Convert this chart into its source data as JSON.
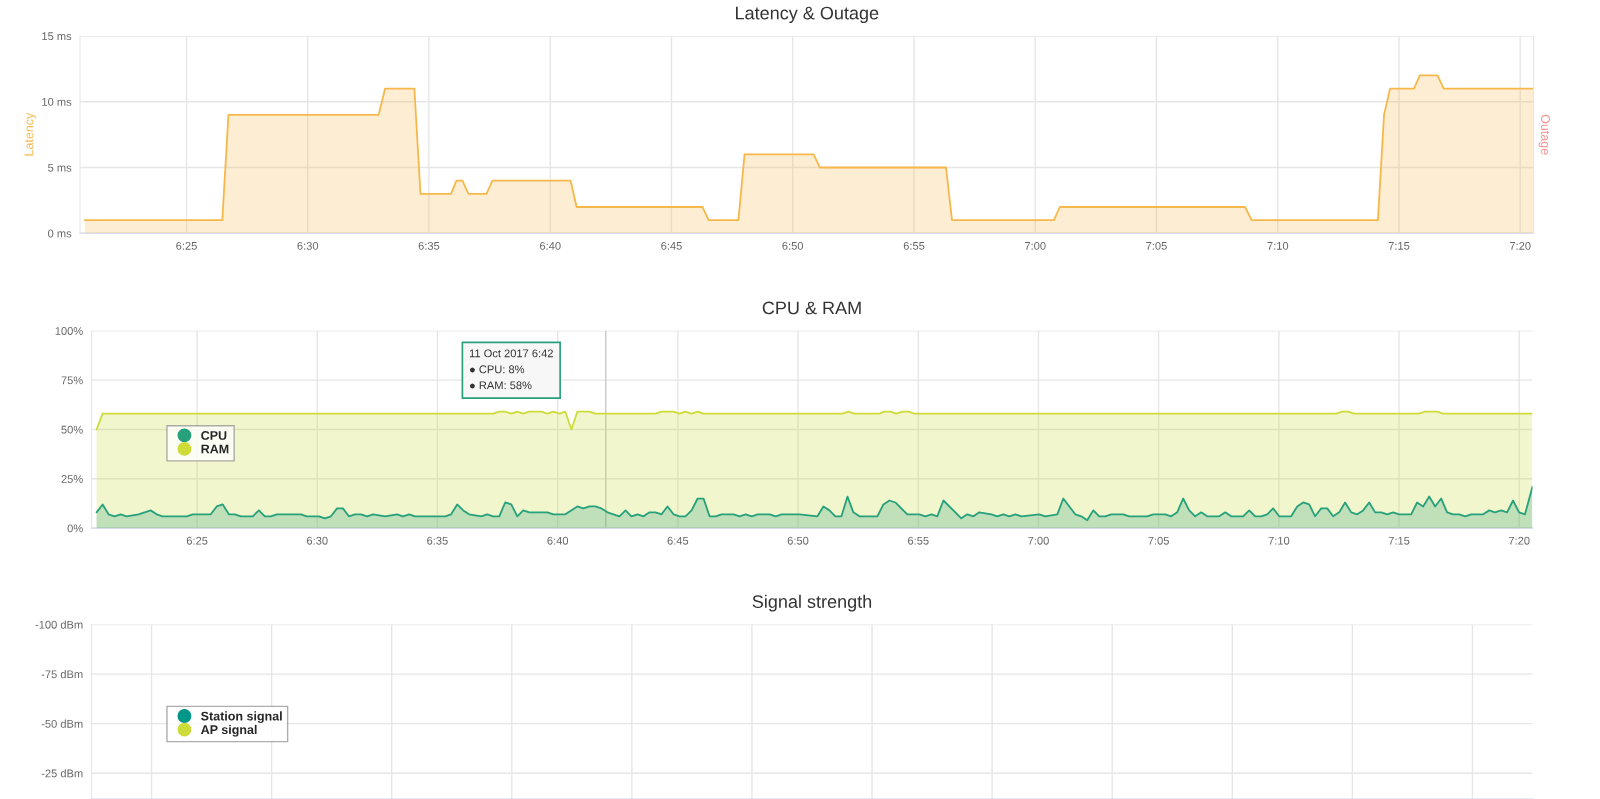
{
  "chart_data": [
    {
      "type": "area",
      "title": "Latency & Outage",
      "ylabel": "Latency",
      "y2label": "Outage",
      "grid": true,
      "legend": false,
      "xlim": [
        6.3435,
        7.3425
      ],
      "ylim": [
        0,
        15
      ],
      "xticks": [
        {
          "value": 6.4167,
          "label": "6:25"
        },
        {
          "value": 6.5,
          "label": "6:30"
        },
        {
          "value": 6.5833,
          "label": "6:35"
        },
        {
          "value": 6.6667,
          "label": "6:40"
        },
        {
          "value": 6.75,
          "label": "6:45"
        },
        {
          "value": 6.8333,
          "label": "6:50"
        },
        {
          "value": 6.9167,
          "label": "6:55"
        },
        {
          "value": 7,
          "label": "7:00"
        },
        {
          "value": 7.0833,
          "label": "7:05"
        },
        {
          "value": 7.1667,
          "label": "7:10"
        },
        {
          "value": 7.25,
          "label": "7:15"
        },
        {
          "value": 7.3333,
          "label": "7:20"
        }
      ],
      "yticks": [
        {
          "value": 0,
          "label": "0 ms"
        },
        {
          "value": 5,
          "label": "5 ms"
        },
        {
          "value": 10,
          "label": "10 ms"
        },
        {
          "value": 15,
          "label": "15 ms"
        }
      ],
      "series": [
        {
          "color": "#f7b84b",
          "x": [
            6.3468,
            6.4413,
            6.4455,
            6.5487,
            6.5532,
            6.5733,
            6.5775,
            6.5985,
            6.6022,
            6.6063,
            6.6105,
            6.6228,
            6.627,
            6.6807,
            6.6848,
            6.7713,
            6.7755,
            6.796,
            6.8002,
            6.8477,
            6.852,
            6.9387,
            6.9428,
            7.0128,
            7.017,
            7.1442,
            7.1487,
            7.2355,
            7.2397,
            7.2438,
            7.2603,
            7.2643,
            7.2765,
            7.2807,
            7.3425
          ],
          "values": [
            1,
            1,
            9,
            9,
            11,
            11,
            3,
            3,
            4,
            4,
            3,
            3,
            4,
            4,
            2,
            2,
            1,
            1,
            6,
            6,
            5,
            5,
            1,
            1,
            2,
            2,
            1,
            1,
            9,
            11,
            11,
            12,
            12,
            11,
            11
          ]
        }
      ]
    },
    {
      "type": "area",
      "title": "CPU & RAM",
      "grid": true,
      "legend": "left",
      "xlim": [
        6.3435,
        7.3425
      ],
      "ylim": [
        0,
        100
      ],
      "xticks": [
        {
          "value": 6.4167,
          "label": "6:25"
        },
        {
          "value": 6.5,
          "label": "6:30"
        },
        {
          "value": 6.5833,
          "label": "6:35"
        },
        {
          "value": 6.6667,
          "label": "6:40"
        },
        {
          "value": 6.75,
          "label": "6:45"
        },
        {
          "value": 6.8333,
          "label": "6:50"
        },
        {
          "value": 6.9167,
          "label": "6:55"
        },
        {
          "value": 7,
          "label": "7:00"
        },
        {
          "value": 7.0833,
          "label": "7:05"
        },
        {
          "value": 7.1667,
          "label": "7:10"
        },
        {
          "value": 7.25,
          "label": "7:15"
        },
        {
          "value": 7.3333,
          "label": "7:20"
        }
      ],
      "yticks": [
        {
          "value": 0,
          "label": "0%"
        },
        {
          "value": 25,
          "label": "25%"
        },
        {
          "value": 50,
          "label": "50%"
        },
        {
          "value": 75,
          "label": "75%"
        },
        {
          "value": 100,
          "label": "100%"
        }
      ],
      "ref_lines": [
        {
          "axis": "x",
          "value": 6.7,
          "color": "#c8c8c8"
        }
      ],
      "annotations": [
        "11 Oct 2017 6:42\n● CPU: 8%\n● RAM: 58%"
      ],
      "series": [
        {
          "name": "CPU",
          "color": "#26a17b",
          "x": [
            6.347,
            6.3512,
            6.3553,
            6.3595,
            6.3637,
            6.3678,
            6.3762,
            6.3845,
            6.3887,
            6.3928,
            6.4095,
            6.4137,
            6.4262,
            6.4303,
            6.4345,
            6.4387,
            6.4428,
            6.447,
            6.4553,
            6.4595,
            6.4637,
            6.4678,
            6.472,
            6.4887,
            6.4928,
            6.5012,
            6.5053,
            6.5095,
            6.5137,
            6.5178,
            6.522,
            6.5262,
            6.5303,
            6.5345,
            6.5387,
            6.547,
            6.5553,
            6.5595,
            6.5637,
            6.5678,
            6.5887,
            6.5928,
            6.597,
            6.6012,
            6.6053,
            6.6137,
            6.6178,
            6.622,
            6.6262,
            6.6303,
            6.6345,
            6.6387,
            6.6428,
            6.647,
            6.6595,
            6.6637,
            6.672,
            6.6803,
            6.6845,
            6.6887,
            6.6928,
            6.697,
            6.7012,
            6.7053,
            6.7095,
            6.7137,
            6.7178,
            6.722,
            6.7262,
            6.7303,
            6.7345,
            6.7387,
            6.7428,
            6.747,
            6.7512,
            6.7553,
            6.7595,
            6.7637,
            6.7678,
            6.772,
            6.7762,
            6.7803,
            6.7887,
            6.7928,
            6.797,
            6.8012,
            6.8053,
            6.8137,
            6.8178,
            6.822,
            6.8343,
            6.8468,
            6.8509,
            6.8551,
            6.8592,
            6.8634,
            6.8676,
            6.8717,
            6.8759,
            6.8883,
            6.8925,
            6.8967,
            6.9008,
            6.9091,
            6.9174,
            6.9216,
            6.9258,
            6.9299,
            6.9341,
            6.9424,
            6.9465,
            6.9507,
            6.9549,
            6.959,
            6.9673,
            6.9715,
            6.9756,
            6.9798,
            6.984,
            6.9881,
            7.0006,
            7.0047,
            7.0131,
            7.0172,
            7.0255,
            7.0297,
            7.0338,
            7.038,
            7.0422,
            7.0463,
            7.0505,
            7.0588,
            7.0629,
            7.0754,
            7.0796,
            7.0879,
            7.092,
            7.0962,
            7.1003,
            7.1045,
            7.1087,
            7.1128,
            7.117,
            7.1253,
            7.1295,
            7.1336,
            7.1419,
            7.1461,
            7.1503,
            7.1544,
            7.1586,
            7.1627,
            7.1669,
            7.1752,
            7.1794,
            7.1835,
            7.1877,
            7.1918,
            7.196,
            7.2002,
            7.2043,
            7.2085,
            7.2126,
            7.2168,
            7.221,
            7.2251,
            7.2293,
            7.2334,
            7.2376,
            7.2418,
            7.2459,
            7.2501,
            7.2584,
            7.2625,
            7.2667,
            7.2709,
            7.275,
            7.2792,
            7.2833,
            7.2875,
            7.2917,
            7.2958,
            7.3,
            7.3083,
            7.3125,
            7.3165,
            7.3207,
            7.3249,
            7.329,
            7.3332,
            7.3373,
            7.3425
          ],
          "values": [
            8,
            12,
            7,
            6,
            7,
            6,
            7,
            9,
            7,
            6,
            6,
            7,
            7,
            11,
            12,
            7,
            7,
            6,
            6,
            9,
            6,
            6,
            7,
            7,
            6,
            6,
            5,
            6,
            10,
            10,
            6,
            7,
            7,
            6,
            7,
            6,
            7,
            6,
            7,
            6,
            6,
            7,
            12,
            9,
            7,
            6,
            7,
            6,
            6,
            13,
            12,
            6,
            9,
            8,
            8,
            7,
            7,
            11,
            10,
            11,
            11,
            10,
            8,
            7,
            6,
            9,
            6,
            7,
            6,
            8,
            8,
            7,
            11,
            7,
            6,
            6,
            9,
            15,
            15,
            6,
            6,
            7,
            7,
            6,
            7,
            6,
            7,
            7,
            6,
            7,
            7,
            6,
            11,
            9,
            6,
            6,
            16,
            8,
            6,
            6,
            12,
            14,
            13,
            7,
            7,
            6,
            7,
            6,
            14,
            8,
            5,
            7,
            6,
            8,
            7,
            6,
            7,
            6,
            7,
            6,
            7,
            6,
            7,
            15,
            7,
            6,
            4,
            9,
            6,
            6,
            7,
            7,
            6,
            6,
            7,
            7,
            6,
            8,
            15,
            9,
            6,
            8,
            6,
            6,
            8,
            6,
            6,
            9,
            6,
            6,
            7,
            10,
            6,
            6,
            11,
            13,
            12,
            6,
            10,
            10,
            6,
            8,
            13,
            8,
            7,
            9,
            13,
            8,
            8,
            7,
            8,
            7,
            7,
            13,
            11,
            16,
            11,
            15,
            8,
            7,
            7,
            6,
            7,
            7,
            9,
            8,
            9,
            8,
            14,
            8,
            7,
            21
          ]
        },
        {
          "name": "RAM",
          "color": "#cddc39",
          "x": [
            6.347,
            6.3512,
            6.622,
            6.6262,
            6.6303,
            6.6345,
            6.6387,
            6.6428,
            6.647,
            6.6553,
            6.6595,
            6.6637,
            6.6678,
            6.672,
            6.6762,
            6.6803,
            6.6887,
            6.6928,
            6.7345,
            6.7387,
            6.747,
            6.7512,
            6.7553,
            6.7595,
            6.7637,
            6.7678,
            6.8641,
            6.8682,
            6.8724,
            6.8897,
            6.8932,
            6.8973,
            6.9015,
            6.9057,
            6.9098,
            6.914,
            7.2064,
            7.2105,
            7.2147,
            7.2188,
            7.2639,
            7.268,
            7.2764,
            7.2805,
            7.3421
          ],
          "values": [
            50,
            58,
            58,
            59,
            59,
            58,
            59,
            58,
            59,
            59,
            58,
            59,
            58,
            59,
            50,
            59,
            59,
            58,
            58,
            59,
            59,
            58,
            59,
            58,
            59,
            58,
            58,
            59,
            58,
            58,
            59,
            59,
            58,
            59,
            59,
            58,
            58,
            59,
            59,
            58,
            58,
            59,
            59,
            58,
            58
          ]
        }
      ]
    },
    {
      "type": "line",
      "title": "Signal strength",
      "grid": true,
      "legend": "left",
      "tick_labels": "y",
      "categories": [
        null,
        null,
        null,
        null,
        null,
        null,
        null,
        null,
        null,
        null,
        null,
        null
      ],
      "ylim": [
        -12,
        -100
      ],
      "yticks": [
        {
          "value": -100,
          "label": "-100 dBm"
        },
        {
          "value": -75,
          "label": "-75 dBm"
        },
        {
          "value": -50,
          "label": "-50 dBm"
        },
        {
          "value": -25,
          "label": "-25 dBm"
        }
      ],
      "series": [
        {
          "name": "Station signal",
          "color": "#009688",
          "values": [
            null,
            null,
            null,
            null,
            null,
            null,
            null,
            null,
            null,
            null,
            null,
            null
          ]
        },
        {
          "name": "AP signal",
          "color": "#cddc39",
          "values": [
            null,
            null,
            null,
            null,
            null,
            null,
            null,
            null,
            null,
            null,
            null,
            null
          ]
        }
      ]
    }
  ]
}
